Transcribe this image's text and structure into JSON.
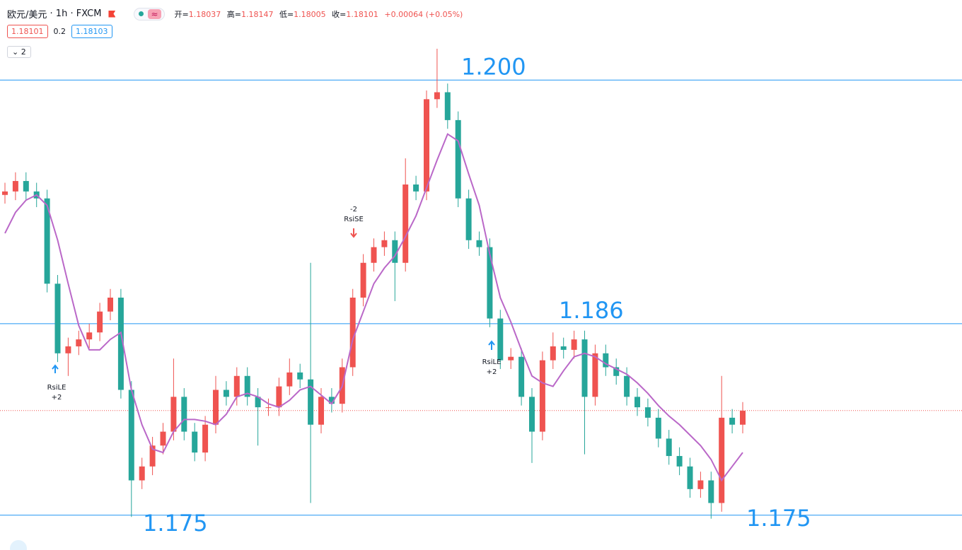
{
  "header": {
    "symbol": "欧元/美元",
    "interval": "1h",
    "exchange": "FXCM",
    "ohlc": [
      {
        "label": "开=",
        "value": "1.18037"
      },
      {
        "label": "高=",
        "value": "1.18147"
      },
      {
        "label": "低=",
        "value": "1.18005"
      },
      {
        "label": "收=",
        "value": "1.18101"
      }
    ],
    "change": "+0.00064 (+0.05%)",
    "spread": "0.2",
    "buy": "1.18103",
    "indicators_count": "2"
  },
  "chart_data": {
    "type": "candlestick",
    "ylim": [
      1.173,
      1.2046
    ],
    "up_color": "#ef5350",
    "down_color": "#26a69a",
    "candles": {
      "open": [
        1.1934,
        1.1936,
        1.1942,
        1.1936,
        1.1932,
        1.1883,
        1.1843,
        1.1847,
        1.1851,
        1.1855,
        1.1867,
        1.1875,
        1.1822,
        1.177,
        1.1778,
        1.179,
        1.1798,
        1.1818,
        1.1798,
        1.1786,
        1.1802,
        1.1822,
        1.1818,
        1.183,
        1.1818,
        1.1812,
        1.1812,
        1.1824,
        1.1832,
        1.1828,
        1.1802,
        1.1818,
        1.1814,
        1.1835,
        1.1875,
        1.1895,
        1.1904,
        1.1908,
        1.1895,
        1.194,
        1.1936,
        1.1989,
        1.1993,
        1.1977,
        1.1932,
        1.1908,
        1.1904,
        1.1863,
        1.1839,
        1.1841,
        1.1818,
        1.1798,
        1.1839,
        1.1847,
        1.1845,
        1.1851,
        1.1818,
        1.1843,
        1.1835,
        1.183,
        1.1818,
        1.1812,
        1.1806,
        1.1794,
        1.1784,
        1.1778,
        1.1765,
        1.177,
        1.1757,
        1.1806,
        1.1802
      ],
      "high": [
        1.1941,
        1.1947,
        1.1947,
        1.1941,
        1.1937,
        1.1888,
        1.1852,
        1.1856,
        1.186,
        1.1872,
        1.188,
        1.188,
        1.1827,
        1.1783,
        1.1795,
        1.1803,
        1.184,
        1.1823,
        1.1803,
        1.1807,
        1.183,
        1.1827,
        1.1835,
        1.1835,
        1.1823,
        1.1817,
        1.1829,
        1.184,
        1.1837,
        1.1895,
        1.1823,
        1.1823,
        1.184,
        1.188,
        1.19,
        1.1909,
        1.1913,
        1.1913,
        1.1955,
        1.1945,
        1.1994,
        1.2018,
        1.1998,
        1.1982,
        1.1937,
        1.1913,
        1.1909,
        1.1868,
        1.1846,
        1.1846,
        1.1823,
        1.1844,
        1.1855,
        1.1852,
        1.1856,
        1.1856,
        1.1848,
        1.1848,
        1.184,
        1.1835,
        1.1823,
        1.1817,
        1.1811,
        1.1799,
        1.1789,
        1.1783,
        1.1775,
        1.1775,
        1.183,
        1.1811,
        1.1815
      ],
      "low": [
        1.1929,
        1.1931,
        1.1931,
        1.1927,
        1.1878,
        1.1838,
        1.183,
        1.1842,
        1.1846,
        1.185,
        1.1862,
        1.1817,
        1.1749,
        1.1765,
        1.1773,
        1.1785,
        1.1793,
        1.1793,
        1.1781,
        1.1781,
        1.1797,
        1.1813,
        1.1813,
        1.1813,
        1.179,
        1.1807,
        1.1807,
        1.1819,
        1.1823,
        1.1757,
        1.1797,
        1.1809,
        1.1809,
        1.183,
        1.187,
        1.189,
        1.1899,
        1.1873,
        1.189,
        1.1931,
        1.1931,
        1.1984,
        1.1972,
        1.1927,
        1.1903,
        1.1899,
        1.1858,
        1.1834,
        1.1834,
        1.1813,
        1.178,
        1.1793,
        1.1834,
        1.184,
        1.184,
        1.1785,
        1.1813,
        1.183,
        1.1825,
        1.1813,
        1.1807,
        1.1801,
        1.1789,
        1.1779,
        1.1773,
        1.176,
        1.176,
        1.1748,
        1.1752,
        1.1797,
        1.1797
      ],
      "close": [
        1.1936,
        1.1942,
        1.1936,
        1.1932,
        1.1883,
        1.1843,
        1.1847,
        1.1851,
        1.1855,
        1.1867,
        1.1875,
        1.1822,
        1.177,
        1.1778,
        1.179,
        1.1798,
        1.1818,
        1.1798,
        1.1786,
        1.1802,
        1.1822,
        1.1818,
        1.183,
        1.1818,
        1.1812,
        1.1812,
        1.1824,
        1.1832,
        1.1828,
        1.1802,
        1.1818,
        1.1814,
        1.1835,
        1.1875,
        1.1895,
        1.1904,
        1.1908,
        1.1895,
        1.194,
        1.1936,
        1.1989,
        1.1993,
        1.1977,
        1.1932,
        1.1908,
        1.1904,
        1.1863,
        1.1839,
        1.1841,
        1.1818,
        1.1798,
        1.1839,
        1.1847,
        1.1845,
        1.1851,
        1.1818,
        1.1843,
        1.1835,
        1.183,
        1.1818,
        1.1812,
        1.1806,
        1.1794,
        1.1784,
        1.1778,
        1.1765,
        1.177,
        1.1757,
        1.1806,
        1.1802,
        1.181
      ]
    },
    "ma": {
      "color": "#ba68c8",
      "values": [
        1.1912,
        1.1924,
        1.1931,
        1.1934,
        1.1928,
        1.1908,
        1.1883,
        1.1859,
        1.1845,
        1.1845,
        1.1851,
        1.1855,
        1.1822,
        1.1802,
        1.1788,
        1.1786,
        1.1798,
        1.1805,
        1.1805,
        1.1804,
        1.1802,
        1.1808,
        1.1818,
        1.182,
        1.1818,
        1.1814,
        1.1812,
        1.1816,
        1.1822,
        1.1824,
        1.1819,
        1.1814,
        1.1824,
        1.1851,
        1.1867,
        1.1883,
        1.1892,
        1.1899,
        1.191,
        1.1922,
        1.1938,
        1.1954,
        1.1969,
        1.1965,
        1.1946,
        1.1928,
        1.19,
        1.1875,
        1.1861,
        1.1845,
        1.183,
        1.1826,
        1.1824,
        1.1833,
        1.1841,
        1.1843,
        1.1841,
        1.1837,
        1.1834,
        1.1831,
        1.1826,
        1.182,
        1.1813,
        1.1807,
        1.1802,
        1.1796,
        1.179,
        1.1782,
        1.177,
        1.1778,
        1.1786
      ]
    },
    "levels": [
      {
        "value": 1.2,
        "label": "1.200"
      },
      {
        "value": 1.186,
        "label": "1.186"
      },
      {
        "value": 1.175,
        "label": "1.175"
      }
    ],
    "level_color": "#2196f3",
    "last_price": 1.18101,
    "signals": [
      {
        "name": "RsiLE",
        "qty": "+2"
      },
      {
        "name": "RsiSE",
        "qty": "-2"
      },
      {
        "name": "RsiLE",
        "qty": "+2"
      }
    ]
  }
}
